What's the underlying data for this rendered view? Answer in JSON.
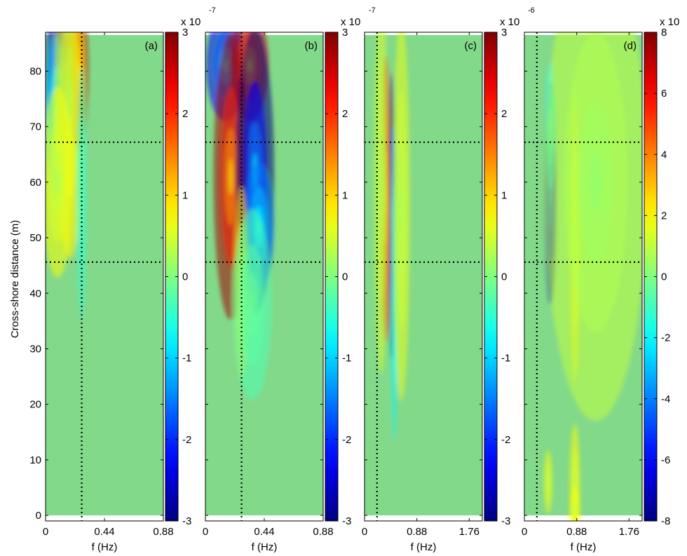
{
  "figure": {
    "ylabel": "Cross-shore distance (m)",
    "background": "#83d98a"
  },
  "chart_data": [
    {
      "panel": "(a)",
      "type": "heatmap",
      "xlabel": "f (Hz)",
      "xlim": [
        0,
        0.88
      ],
      "ylim": [
        -1,
        87
      ],
      "xticks": [
        0,
        0.44,
        0.88
      ],
      "xtick_labels": [
        "0",
        "0.44",
        "0.88"
      ],
      "yticks": [
        0,
        10,
        20,
        30,
        40,
        50,
        60,
        70,
        80
      ],
      "vertical_dotted_line": 0.27,
      "horizontal_dotted_lines": [
        67.2,
        45.6
      ],
      "data_extent_y": [
        0,
        86.5
      ],
      "colorbar": {
        "min": -3,
        "max": 3,
        "ticks": [
          -3,
          -2,
          -1,
          0,
          1,
          2,
          3
        ],
        "multiplier": "x 10",
        "exponent": "-7"
      },
      "features": [
        {
          "f": 0.1,
          "y": 80,
          "sf": 0.035,
          "sy": 4.5,
          "value": -2.6
        },
        {
          "f": 0.08,
          "y": 72,
          "sf": 0.03,
          "sy": 5,
          "value": -1.0
        },
        {
          "f": 0.25,
          "y": 80,
          "sf": 0.025,
          "sy": 5,
          "value": 2.7
        },
        {
          "f": 0.18,
          "y": 75,
          "sf": 0.04,
          "sy": 10,
          "value": 0.8
        },
        {
          "f": 0.09,
          "y": 60,
          "sf": 0.04,
          "sy": 6,
          "value": 0.7
        },
        {
          "f": 0.27,
          "y": 58,
          "sf": 0.012,
          "sy": 8,
          "value": -0.5
        }
      ]
    },
    {
      "panel": "(b)",
      "type": "heatmap",
      "xlabel": "f (Hz)",
      "xlim": [
        0,
        0.88
      ],
      "ylim": [
        -1,
        87
      ],
      "xticks": [
        0,
        0.44,
        0.88
      ],
      "xtick_labels": [
        "0",
        "0.44",
        "0.88"
      ],
      "yticks": [
        0,
        10,
        20,
        30,
        40,
        50,
        60,
        70,
        80
      ],
      "vertical_dotted_line": 0.27,
      "horizontal_dotted_lines": [
        67.2,
        45.6
      ],
      "data_extent_y": [
        0,
        86.5
      ],
      "colorbar": {
        "min": -3,
        "max": 3,
        "ticks": [
          -3,
          -2,
          -1,
          0,
          1,
          2,
          3
        ],
        "multiplier": "x 10",
        "exponent": "-7"
      },
      "features": [
        {
          "f": 0.15,
          "y": 81,
          "sf": 0.05,
          "sy": 3.5,
          "value": -2.2
        },
        {
          "f": 0.33,
          "y": 81,
          "sf": 0.05,
          "sy": 3.5,
          "value": 2.6
        },
        {
          "f": 0.19,
          "y": 61,
          "sf": 0.045,
          "sy": 9,
          "value": 2.8
        },
        {
          "f": 0.37,
          "y": 62,
          "sf": 0.05,
          "sy": 9,
          "value": -3.0
        },
        {
          "f": 0.4,
          "y": 52,
          "sf": 0.04,
          "sy": 4,
          "value": -1.5
        },
        {
          "f": 0.27,
          "y": 42,
          "sf": 0.02,
          "sy": 6,
          "value": 0.9
        },
        {
          "f": 0.35,
          "y": 38,
          "sf": 0.05,
          "sy": 6,
          "value": -0.3
        }
      ]
    },
    {
      "panel": "(c)",
      "type": "heatmap",
      "xlabel": "f (Hz)",
      "xlim": [
        0,
        1.98
      ],
      "ylim": [
        -1,
        87
      ],
      "xticks": [
        0,
        0.88,
        1.76
      ],
      "xtick_labels": [
        "0",
        "0.88",
        "1.76"
      ],
      "yticks": [
        0,
        10,
        20,
        30,
        40,
        50,
        60,
        70,
        80
      ],
      "vertical_dotted_line": 0.21,
      "horizontal_dotted_lines": [
        67.2,
        45.6
      ],
      "data_extent_y": [
        0,
        86.5
      ],
      "colorbar": {
        "min": -3,
        "max": 3,
        "ticks": [
          -3,
          -2,
          -1,
          0,
          1,
          2,
          3
        ],
        "multiplier": "x 10",
        "exponent": "-6"
      },
      "features": [
        {
          "f": 0.46,
          "y": 54,
          "sf": 0.025,
          "sy": 9,
          "value": -3.0
        },
        {
          "f": 0.36,
          "y": 57,
          "sf": 0.03,
          "sy": 9,
          "value": 2.3
        },
        {
          "f": 0.5,
          "y": 42,
          "sf": 0.02,
          "sy": 10,
          "value": -0.8
        },
        {
          "f": 0.62,
          "y": 55,
          "sf": 0.05,
          "sy": 12,
          "value": 0.6
        },
        {
          "f": 0.28,
          "y": 60,
          "sf": 0.04,
          "sy": 12,
          "value": 0.5
        }
      ]
    },
    {
      "panel": "(d)",
      "type": "heatmap",
      "xlabel": "f (Hz)",
      "xlim": [
        0,
        1.98
      ],
      "ylim": [
        -1,
        87
      ],
      "xticks": [
        0,
        0.88,
        1.76
      ],
      "xtick_labels": [
        "0",
        "0.88",
        "1.76"
      ],
      "yticks": [
        0,
        10,
        20,
        30,
        40,
        50,
        60,
        70,
        80
      ],
      "vertical_dotted_line": 0.21,
      "horizontal_dotted_lines": [
        67.2,
        45.6
      ],
      "data_extent_y": [
        0,
        86.5
      ],
      "colorbar": {
        "min": -8,
        "max": 8,
        "ticks": [
          -8,
          -6,
          -4,
          -2,
          0,
          2,
          4,
          6,
          8
        ],
        "multiplier": "x 10",
        "exponent": "-6"
      },
      "features": [
        {
          "f": 0.44,
          "y": 58,
          "sf": 0.035,
          "sy": 7,
          "value": -7.6
        },
        {
          "f": 0.44,
          "y": 70,
          "sf": 0.03,
          "sy": 4,
          "value": -2.0
        },
        {
          "f": 0.85,
          "y": 50,
          "sf": 0.03,
          "sy": 9,
          "value": 2.2
        },
        {
          "f": 0.85,
          "y": 5,
          "sf": 0.03,
          "sy": 4,
          "value": 2.0
        },
        {
          "f": 0.4,
          "y": 6,
          "sf": 0.025,
          "sy": 2,
          "value": 1.8
        },
        {
          "f": 0.85,
          "y": 1,
          "sf": 0.03,
          "sy": 1.5,
          "value": 2.0
        },
        {
          "f": 1.2,
          "y": 60,
          "sf": 0.3,
          "sy": 15,
          "value": 1.0
        }
      ]
    }
  ]
}
